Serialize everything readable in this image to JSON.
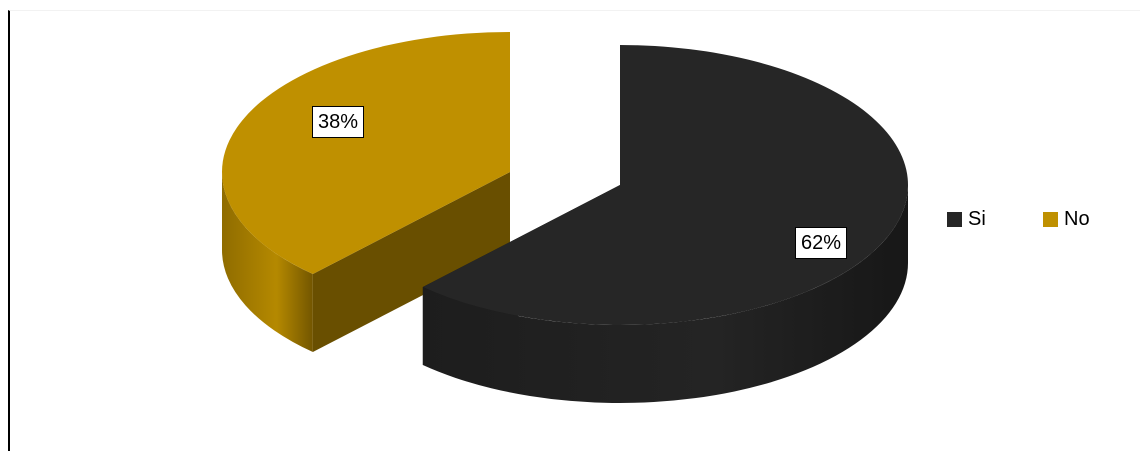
{
  "chart_data": {
    "type": "pie",
    "style": "3d-exploded",
    "categories": [
      "Si",
      "No"
    ],
    "values": [
      62,
      38
    ],
    "data_labels": [
      "62%",
      "38%"
    ],
    "colors": [
      "#262626",
      "#bf9000"
    ],
    "title": "",
    "legend": {
      "position": "right",
      "entries": [
        "Si",
        "No"
      ]
    }
  }
}
